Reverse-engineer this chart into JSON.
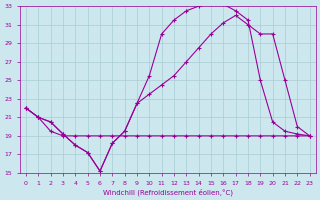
{
  "xlabel": "Windchill (Refroidissement éolien,°C)",
  "background_color": "#cce8ee",
  "grid_color": "#aaccd4",
  "line_color": "#990099",
  "xlim": [
    -0.5,
    23.5
  ],
  "ylim": [
    15,
    33
  ],
  "xticks": [
    0,
    1,
    2,
    3,
    4,
    5,
    6,
    7,
    8,
    9,
    10,
    11,
    12,
    13,
    14,
    15,
    16,
    17,
    18,
    19,
    20,
    21,
    22,
    23
  ],
  "yticks": [
    15,
    17,
    19,
    21,
    23,
    25,
    27,
    29,
    31,
    33
  ],
  "curve1_x": [
    0,
    1,
    2,
    3,
    4,
    5,
    6,
    7,
    8,
    9,
    10,
    11,
    12,
    13,
    14,
    15,
    16,
    17,
    18,
    19,
    20,
    21,
    22,
    23
  ],
  "curve1_y": [
    22.0,
    21.0,
    20.5,
    19.2,
    18.0,
    17.2,
    15.2,
    18.2,
    19.5,
    22.5,
    25.5,
    30.0,
    31.5,
    32.5,
    33.0,
    33.2,
    33.2,
    32.5,
    31.5,
    25.0,
    20.5,
    19.5,
    19.2,
    19.0
  ],
  "curve2_x": [
    0,
    1,
    2,
    3,
    4,
    5,
    6,
    7,
    8,
    9,
    10,
    11,
    12,
    13,
    14,
    15,
    16,
    17,
    18,
    19,
    20,
    21,
    22,
    23
  ],
  "curve2_y": [
    22.0,
    21.0,
    20.5,
    19.2,
    18.0,
    17.2,
    15.2,
    18.2,
    19.5,
    22.5,
    23.5,
    24.5,
    25.5,
    27.0,
    28.5,
    30.0,
    31.2,
    32.0,
    31.0,
    30.0,
    30.0,
    25.0,
    20.0,
    19.0
  ],
  "curve3_x": [
    0,
    1,
    2,
    3,
    4,
    5,
    6,
    7,
    8,
    9,
    10,
    11,
    12,
    13,
    14,
    15,
    16,
    17,
    18,
    19,
    20,
    21,
    22,
    23
  ],
  "curve3_y": [
    22.0,
    21.0,
    19.5,
    19.0,
    19.0,
    19.0,
    19.0,
    19.0,
    19.0,
    19.0,
    19.0,
    19.0,
    19.0,
    19.0,
    19.0,
    19.0,
    19.0,
    19.0,
    19.0,
    19.0,
    19.0,
    19.0,
    19.0,
    19.0
  ]
}
